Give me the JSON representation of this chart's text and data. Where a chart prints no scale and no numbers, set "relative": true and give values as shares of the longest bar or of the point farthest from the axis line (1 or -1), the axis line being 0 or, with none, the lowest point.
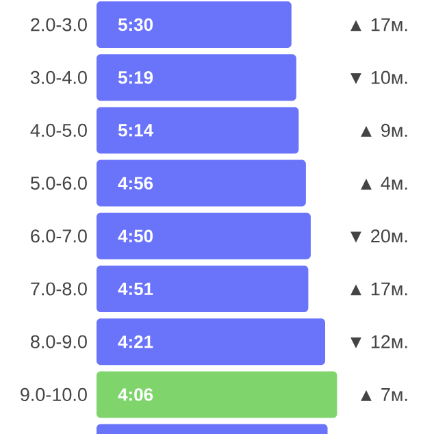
{
  "chart_data": {
    "type": "bar",
    "orientation": "horizontal",
    "relative": true,
    "categories": [
      "2.0-3.0",
      "3.0-4.0",
      "4.0-5.0",
      "5.0-6.0",
      "6.0-7.0",
      "7.0-8.0",
      "8.0-9.0",
      "9.0-10.0",
      null
    ],
    "values": [
      0.81,
      0.83,
      0.84,
      0.87,
      0.89,
      0.88,
      0.95,
      1,
      0.96
    ],
    "colors": [
      "#6a74fa",
      "#6a74fa",
      "#6a74fa",
      "#6a74fa",
      "#6a74fa",
      "#6a74fa",
      "#6a74fa",
      "#7fd56c",
      "#6a74fa"
    ],
    "annotations": [
      "5:30",
      "5:19",
      "5:14",
      "4:56",
      "4:50",
      "4:51",
      "4:21",
      "4:06",
      "▲ 17м.",
      "▼ 10м.",
      "▲ 9м.",
      "▲ 4м.",
      "▼ 20м.",
      "▲ 17м.",
      "▼ 12м.",
      "▲ 7м."
    ]
  }
}
